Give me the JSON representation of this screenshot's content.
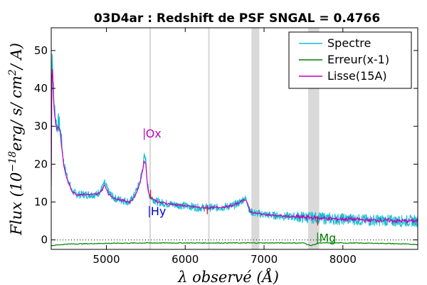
{
  "chart_data": {
    "type": "line",
    "title": "03D4ar : Redshift de PSF SNGAL = 0.4766",
    "xlabel": "λ observé (Å)",
    "ylabel": "Flux (10^-18 erg/s/cm²/A)",
    "ylabel_parts": {
      "prefix": "Flux (10",
      "exponent": "−18",
      "units": "erg/ s/ cm",
      "unit_exp": "2",
      "suffix": "/ A)"
    },
    "xlim": [
      4300,
      8950
    ],
    "ylim": [
      -2.5,
      56
    ],
    "xticks": [
      5000,
      6000,
      7000,
      8000
    ],
    "yticks": [
      0,
      10,
      20,
      30,
      40,
      50
    ],
    "legend_position": "top-right",
    "grid": false,
    "shaded_bands_x": [
      [
        5545,
        5565
      ],
      [
        6290,
        6310
      ],
      [
        6840,
        6940
      ],
      [
        7560,
        7700
      ]
    ],
    "zero_line_y": 0.0,
    "colors": {
      "spectre": "#17becf",
      "erreur": "#008000",
      "lisse": "#bf00bf",
      "band": "#d9d9d9",
      "hy_label": "#0000cc",
      "mg_label": "#008000",
      "red_mark": "#ff0000"
    },
    "series": [
      {
        "name": "Spectre",
        "x": [
          4300,
          4310,
          4320,
          4335,
          4350,
          4370,
          4390,
          4410,
          4430,
          4460,
          4500,
          4560,
          4620,
          4700,
          4800,
          4880,
          4940,
          4980,
          5030,
          5100,
          5200,
          5300,
          5360,
          5420,
          5460,
          5480,
          5500,
          5520,
          5540,
          5580,
          5650,
          5800,
          6000,
          6200,
          6400,
          6600,
          6700,
          6750,
          6780,
          6820,
          6900,
          7100,
          7300,
          7500,
          7700,
          7900,
          8100,
          8300,
          8500,
          8700,
          8950
        ],
        "y": [
          14,
          52,
          44,
          36,
          33,
          30,
          31,
          30,
          26,
          20,
          17,
          13,
          12,
          12,
          12,
          12,
          13.5,
          15,
          12.5,
          11,
          10.5,
          10,
          12,
          15,
          19,
          22,
          21,
          15,
          12,
          11,
          10,
          9.5,
          9,
          8.5,
          8.5,
          9,
          10,
          11,
          10.5,
          7.5,
          7,
          6.5,
          6.2,
          6,
          5.8,
          5.5,
          5.5,
          5.2,
          5.2,
          5,
          5
        ]
      },
      {
        "name": "Erreur(x-1)",
        "x": [
          4300,
          4500,
          5000,
          5500,
          6000,
          6500,
          7000,
          7500,
          7600,
          7700,
          8000,
          8500,
          8950
        ],
        "y": [
          -1.5,
          -1.1,
          -0.9,
          -0.8,
          -0.8,
          -0.8,
          -0.8,
          -0.8,
          -1.5,
          -0.8,
          -0.8,
          -0.9,
          -1.2
        ]
      },
      {
        "name": "Lisse(15A)",
        "x": [
          4300,
          4310,
          4320,
          4335,
          4350,
          4370,
          4390,
          4410,
          4430,
          4460,
          4500,
          4560,
          4620,
          4700,
          4800,
          4880,
          4940,
          4980,
          5030,
          5100,
          5200,
          5300,
          5360,
          5420,
          5460,
          5480,
          5500,
          5520,
          5540,
          5580,
          5650,
          5800,
          6000,
          6200,
          6400,
          6600,
          6700,
          6750,
          6780,
          6820,
          6900,
          7100,
          7300,
          7500,
          7700,
          7900,
          8100,
          8300,
          8500,
          8700,
          8950
        ],
        "y": [
          14,
          50,
          42,
          35,
          32,
          29,
          30,
          29,
          25,
          19.5,
          16,
          13,
          12,
          12,
          12,
          12,
          13,
          14.5,
          12,
          11,
          10.5,
          10,
          11.5,
          14.5,
          18.5,
          21,
          20,
          14.5,
          12,
          11,
          10,
          9.5,
          9,
          8.5,
          8.5,
          9,
          10,
          10.8,
          10.2,
          7.5,
          7,
          6.5,
          6.2,
          6,
          5.8,
          5.5,
          5.5,
          5.2,
          5.2,
          5,
          5
        ]
      }
    ],
    "annotations": [
      {
        "text": "Ox",
        "x": 5480,
        "y": 27,
        "color": "#bf00bf"
      },
      {
        "text": "Hy",
        "x": 5545,
        "y": 6.5,
        "color": "#0000cc"
      },
      {
        "text": "Mg",
        "x": 7680,
        "y": -0.5,
        "color": "#008000"
      }
    ]
  }
}
